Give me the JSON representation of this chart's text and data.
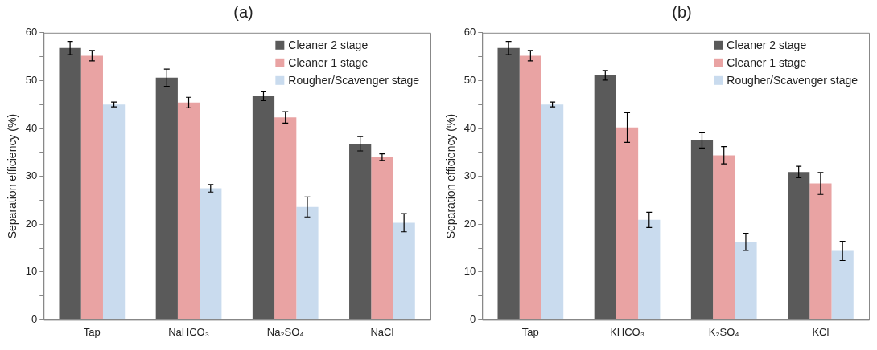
{
  "chart_data": [
    {
      "type": "bar",
      "title": "(a)",
      "ylabel": "Separation efficiency (%)",
      "categories": [
        "Tap",
        "NaHCO₃",
        "Na₂SO₄",
        "NaCl"
      ],
      "series": [
        {
          "name": "Cleaner 2 stage",
          "color": "#5a5a5a",
          "values": [
            56.8,
            50.6,
            46.8,
            36.8
          ],
          "errors": [
            1.4,
            1.8,
            1.0,
            1.5
          ]
        },
        {
          "name": "Cleaner 1 stage",
          "color": "#e9a3a3",
          "values": [
            55.2,
            45.4,
            42.3,
            34.0
          ],
          "errors": [
            1.1,
            1.1,
            1.2,
            0.7
          ]
        },
        {
          "name": "Rougher/Scavenger stage",
          "color": "#c9dbee",
          "values": [
            45.0,
            27.5,
            23.6,
            20.3
          ],
          "errors": [
            0.5,
            0.8,
            2.1,
            1.9
          ]
        }
      ],
      "ylim": [
        0,
        60
      ],
      "yticks": [
        0,
        {
          "value": 5,
          "label": null
        },
        10,
        {
          "value": 15,
          "label": null
        },
        20,
        {
          "value": 25,
          "label": null
        },
        30,
        {
          "value": 35,
          "label": null
        },
        40,
        {
          "value": 45,
          "label": null
        },
        50,
        {
          "value": 55,
          "label": null
        },
        60
      ],
      "grid": false,
      "legend": "top right"
    },
    {
      "type": "bar",
      "title": "(b)",
      "ylabel": "Separation efficiency (%)",
      "categories": [
        "Tap",
        "KHCO₃",
        "K₂SO₄",
        "KCl"
      ],
      "series": [
        {
          "name": "Cleaner 2 stage",
          "color": "#5a5a5a",
          "values": [
            56.8,
            51.1,
            37.5,
            30.9
          ],
          "errors": [
            1.4,
            1.0,
            1.6,
            1.2
          ]
        },
        {
          "name": "Cleaner 1 stage",
          "color": "#e9a3a3",
          "values": [
            55.2,
            40.2,
            34.4,
            28.5
          ],
          "errors": [
            1.1,
            3.1,
            1.8,
            2.3
          ]
        },
        {
          "name": "Rougher/Scavenger stage",
          "color": "#c9dbee",
          "values": [
            45.0,
            20.9,
            16.3,
            14.4
          ],
          "errors": [
            0.5,
            1.6,
            1.8,
            2.0
          ]
        }
      ],
      "ylim": [
        0,
        60
      ],
      "yticks": [
        0,
        {
          "value": 5,
          "label": null
        },
        10,
        {
          "value": 15,
          "label": null
        },
        20,
        {
          "value": 25,
          "label": null
        },
        30,
        {
          "value": 35,
          "label": null
        },
        40,
        {
          "value": 45,
          "label": null
        },
        50,
        {
          "value": 55,
          "label": null
        },
        60
      ],
      "grid": false,
      "legend": "top right"
    }
  ]
}
